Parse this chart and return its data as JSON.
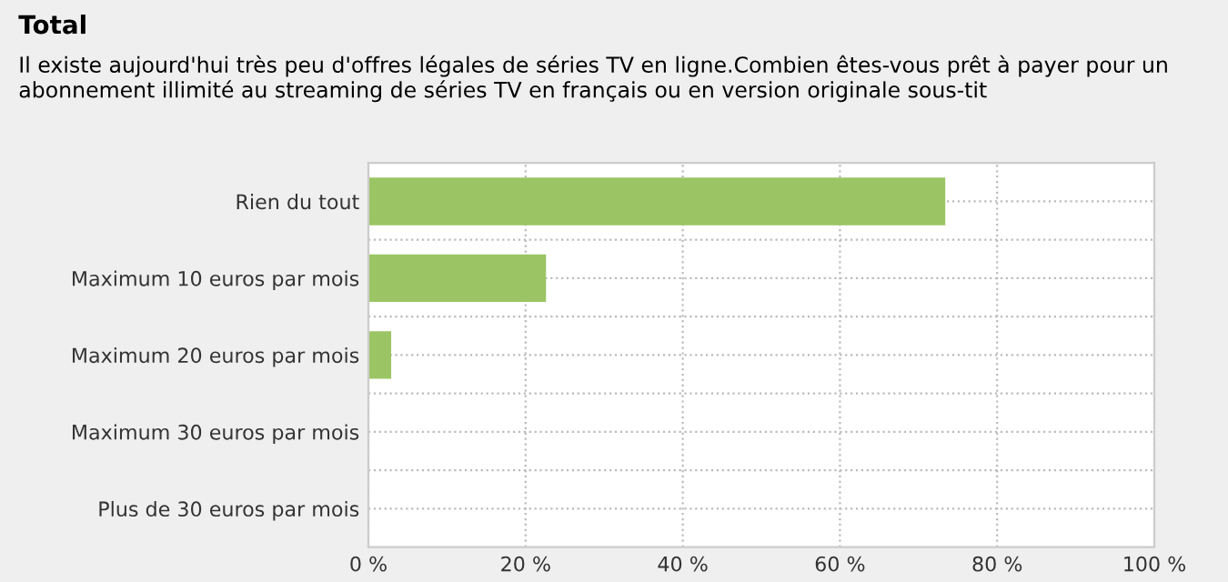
{
  "chart_data": {
    "type": "bar",
    "orientation": "horizontal",
    "title": "Total",
    "subtitle": "Il existe aujourd'hui très peu d'offres légales de séries TV en ligne.Combien êtes-vous prêt à payer pour un abonnement illimité au streaming de séries TV en français ou en version originale sous-tit",
    "categories": [
      "Rien du tout",
      "Maximum 10 euros par mois",
      "Maximum 20 euros par mois",
      "Maximum 30 euros par mois",
      "Plus de 30 euros par mois"
    ],
    "values": [
      73.4,
      22.6,
      2.9,
      0,
      0
    ],
    "color": "#9bc564",
    "xlim": [
      0,
      100
    ],
    "xticks": [
      {
        "value": 0,
        "label": "0 %"
      },
      {
        "value": 20,
        "label": "20 %"
      },
      {
        "value": 40,
        "label": "40 %"
      },
      {
        "value": 60,
        "label": "60 %"
      },
      {
        "value": 80,
        "label": "80 %"
      },
      {
        "value": 100,
        "label": "100 %"
      }
    ],
    "grid": true
  }
}
